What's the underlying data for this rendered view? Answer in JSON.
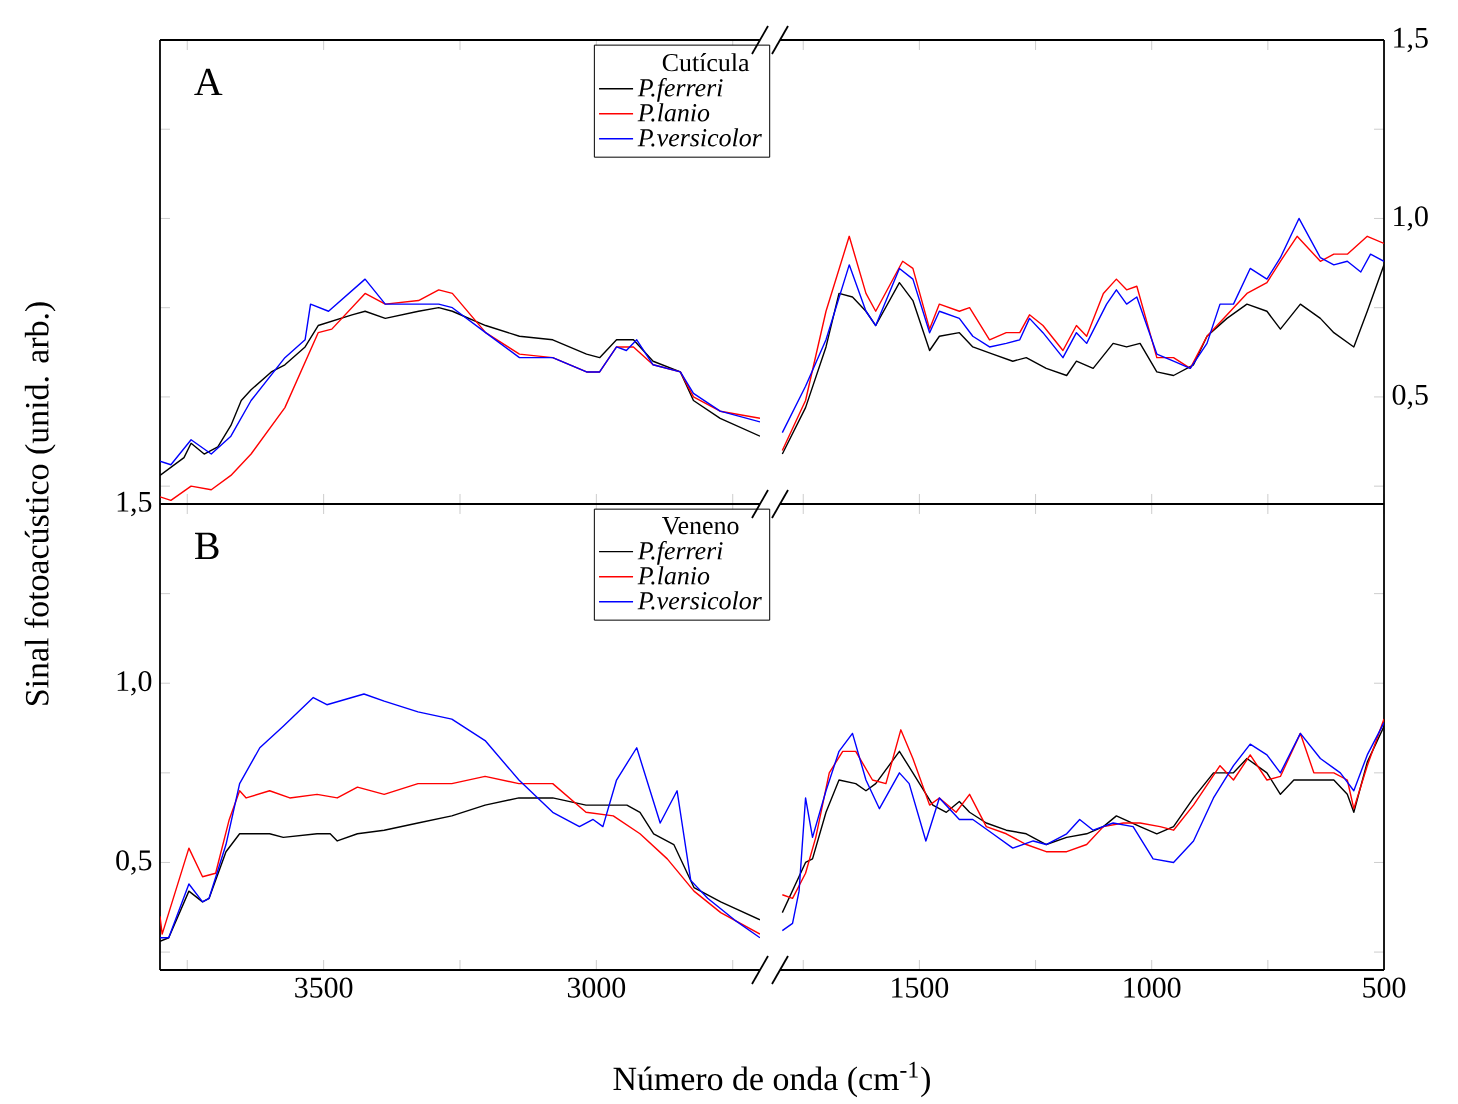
{
  "chart_data": [
    {
      "type": "line",
      "annotations": [
        "A"
      ],
      "legend_title": "Cutícula",
      "legend": "top right",
      "tick_labels": false,
      "xlim": [
        3800,
        2700
      ],
      "ylim": [
        0.2,
        1.5
      ],
      "xticks": [
        3750,
        3500,
        3250,
        3000,
        2750
      ],
      "yticks": [
        0.25,
        0.5,
        0.75,
        1.0,
        1.25,
        1.5
      ],
      "series": [
        {
          "name": "P.ferreri",
          "color": "#000000",
          "x": [
            3800,
            3756,
            3743,
            3719,
            3694,
            3670,
            3651,
            3633,
            3596,
            3571,
            3534,
            3510,
            3448,
            3424,
            3387,
            3326,
            3289,
            3264,
            3203,
            3141,
            3080,
            3018,
            2994,
            2963,
            2932,
            2896,
            2846,
            2822,
            2773,
            2700
          ],
          "values": [
            0.28,
            0.33,
            0.37,
            0.34,
            0.36,
            0.42,
            0.49,
            0.52,
            0.57,
            0.59,
            0.64,
            0.7,
            0.73,
            0.74,
            0.72,
            0.74,
            0.75,
            0.74,
            0.7,
            0.67,
            0.66,
            0.62,
            0.61,
            0.66,
            0.66,
            0.6,
            0.57,
            0.49,
            0.44,
            0.39
          ]
        },
        {
          "name": "P.lanio",
          "color": "#ff0000",
          "x": [
            3800,
            3780,
            3743,
            3706,
            3670,
            3633,
            3571,
            3510,
            3485,
            3424,
            3387,
            3326,
            3289,
            3264,
            3203,
            3141,
            3080,
            3018,
            2994,
            2963,
            2932,
            2896,
            2846,
            2822,
            2773,
            2700
          ],
          "values": [
            0.22,
            0.21,
            0.25,
            0.24,
            0.28,
            0.34,
            0.47,
            0.68,
            0.69,
            0.79,
            0.76,
            0.77,
            0.8,
            0.79,
            0.68,
            0.62,
            0.61,
            0.57,
            0.57,
            0.64,
            0.64,
            0.59,
            0.57,
            0.5,
            0.46,
            0.44
          ]
        },
        {
          "name": "P.versicolor",
          "color": "#0000ff",
          "x": [
            3800,
            3780,
            3743,
            3706,
            3670,
            3633,
            3571,
            3534,
            3524,
            3491,
            3424,
            3387,
            3326,
            3289,
            3264,
            3203,
            3141,
            3080,
            3018,
            2994,
            2963,
            2945,
            2926,
            2896,
            2846,
            2822,
            2773,
            2700
          ],
          "values": [
            0.32,
            0.31,
            0.38,
            0.34,
            0.39,
            0.49,
            0.61,
            0.66,
            0.76,
            0.74,
            0.83,
            0.76,
            0.76,
            0.76,
            0.75,
            0.68,
            0.61,
            0.61,
            0.57,
            0.57,
            0.64,
            0.63,
            0.66,
            0.59,
            0.57,
            0.51,
            0.46,
            0.43
          ]
        }
      ]
    },
    {
      "type": "line",
      "tick_labels": "y",
      "xlim": [
        1800,
        500
      ],
      "ylim": [
        0.2,
        1.5
      ],
      "xticks": [
        {
          "value": 1750,
          "label": null
        },
        1500,
        {
          "value": 1250,
          "label": null
        },
        1000,
        {
          "value": 750,
          "label": null
        },
        500
      ],
      "yticks": [
        {
          "value": 0.25,
          "label": null
        },
        {
          "value": 0.5,
          "label": "0,5"
        },
        {
          "value": 0.75,
          "label": null
        },
        {
          "value": 1.0,
          "label": "1,0"
        },
        {
          "value": 1.25,
          "label": null
        },
        {
          "value": 1.5,
          "label": "1,5"
        }
      ],
      "series": [
        {
          "color": "#000000",
          "x": [
            1795,
            1745,
            1701,
            1673,
            1644,
            1615,
            1594,
            1543,
            1514,
            1478,
            1457,
            1414,
            1385,
            1342,
            1299,
            1270,
            1227,
            1183,
            1162,
            1126,
            1083,
            1054,
            1025,
            989,
            953,
            910,
            881,
            838,
            795,
            752,
            723,
            680,
            637,
            608,
            565,
            536,
            500
          ],
          "values": [
            0.34,
            0.47,
            0.64,
            0.79,
            0.78,
            0.74,
            0.7,
            0.82,
            0.77,
            0.63,
            0.67,
            0.68,
            0.64,
            0.62,
            0.6,
            0.61,
            0.58,
            0.56,
            0.6,
            0.58,
            0.65,
            0.64,
            0.65,
            0.57,
            0.56,
            0.59,
            0.67,
            0.72,
            0.76,
            0.74,
            0.69,
            0.76,
            0.72,
            0.68,
            0.64,
            0.74,
            0.87
          ]
        },
        {
          "color": "#ff0000",
          "x": [
            1795,
            1745,
            1701,
            1651,
            1615,
            1594,
            1536,
            1514,
            1478,
            1457,
            1414,
            1392,
            1349,
            1313,
            1284,
            1263,
            1234,
            1191,
            1162,
            1140,
            1104,
            1076,
            1054,
            1032,
            989,
            953,
            917,
            881,
            838,
            795,
            752,
            723,
            687,
            637,
            608,
            579,
            536,
            500
          ],
          "values": [
            0.35,
            0.49,
            0.74,
            0.95,
            0.79,
            0.74,
            0.88,
            0.86,
            0.69,
            0.76,
            0.74,
            0.75,
            0.66,
            0.68,
            0.68,
            0.73,
            0.7,
            0.63,
            0.7,
            0.67,
            0.79,
            0.83,
            0.8,
            0.81,
            0.61,
            0.61,
            0.58,
            0.67,
            0.73,
            0.79,
            0.82,
            0.88,
            0.95,
            0.88,
            0.9,
            0.9,
            0.95,
            0.93
          ]
        },
        {
          "color": "#0000ff",
          "x": [
            1795,
            1745,
            1701,
            1651,
            1615,
            1594,
            1543,
            1514,
            1478,
            1457,
            1414,
            1385,
            1349,
            1313,
            1284,
            1263,
            1234,
            1191,
            1162,
            1140,
            1097,
            1076,
            1054,
            1032,
            989,
            953,
            917,
            881,
            853,
            824,
            788,
            752,
            723,
            683,
            637,
            608,
            579,
            550,
            529,
            500
          ],
          "values": [
            0.4,
            0.53,
            0.66,
            0.87,
            0.74,
            0.7,
            0.86,
            0.83,
            0.68,
            0.74,
            0.72,
            0.67,
            0.64,
            0.65,
            0.66,
            0.72,
            0.68,
            0.61,
            0.68,
            0.65,
            0.76,
            0.8,
            0.76,
            0.78,
            0.62,
            0.6,
            0.58,
            0.65,
            0.76,
            0.76,
            0.86,
            0.83,
            0.89,
            1.0,
            0.89,
            0.87,
            0.88,
            0.85,
            0.9,
            0.88
          ]
        }
      ]
    },
    {
      "type": "line",
      "annotations": [
        "B"
      ],
      "legend_title": "Veneno",
      "legend": "top right",
      "xlabel": "Número de onda (cm$^{-1}$)",
      "ylabel": "Sinal fotoacústico (unid. arb.)",
      "xlim": [
        3800,
        2700
      ],
      "ylim": [
        0.2,
        1.5
      ],
      "xticks": [
        {
          "value": 3750,
          "label": null
        },
        3500,
        {
          "value": 3250,
          "label": null
        },
        3000,
        {
          "value": 2750,
          "label": null
        }
      ],
      "yticks": [
        {
          "value": 0.25,
          "label": null
        },
        {
          "value": 0.5,
          "label": "0,5"
        },
        {
          "value": 0.75,
          "label": null
        },
        {
          "value": 1.0,
          "label": "1,0"
        },
        {
          "value": 1.25,
          "label": null
        },
        {
          "value": 1.5,
          "label": "1,5"
        }
      ],
      "series": [
        {
          "name": "P.ferreri",
          "color": "#000000",
          "x": [
            3800,
            3784,
            3747,
            3722,
            3710,
            3679,
            3654,
            3636,
            3599,
            3574,
            3512,
            3488,
            3475,
            3438,
            3389,
            3327,
            3265,
            3204,
            3142,
            3080,
            3019,
            2969,
            2944,
            2920,
            2895,
            2858,
            2821,
            2772,
            2700
          ],
          "values": [
            0.28,
            0.29,
            0.42,
            0.39,
            0.4,
            0.53,
            0.58,
            0.58,
            0.58,
            0.57,
            0.58,
            0.58,
            0.56,
            0.58,
            0.59,
            0.61,
            0.63,
            0.66,
            0.68,
            0.68,
            0.66,
            0.66,
            0.66,
            0.64,
            0.58,
            0.55,
            0.43,
            0.39,
            0.34
          ]
        },
        {
          "name": "P.lanio",
          "color": "#ff0000",
          "x": [
            3800,
            3796,
            3747,
            3722,
            3698,
            3673,
            3654,
            3642,
            3599,
            3562,
            3512,
            3475,
            3438,
            3389,
            3327,
            3265,
            3204,
            3142,
            3080,
            3019,
            2969,
            2920,
            2870,
            2821,
            2772,
            2700
          ],
          "values": [
            0.35,
            0.3,
            0.54,
            0.46,
            0.47,
            0.62,
            0.7,
            0.68,
            0.7,
            0.68,
            0.69,
            0.68,
            0.71,
            0.69,
            0.72,
            0.72,
            0.74,
            0.72,
            0.72,
            0.64,
            0.63,
            0.58,
            0.51,
            0.42,
            0.36,
            0.3
          ]
        },
        {
          "name": "P.versicolor",
          "color": "#0000ff",
          "x": [
            3800,
            3784,
            3747,
            3722,
            3710,
            3679,
            3654,
            3617,
            3574,
            3519,
            3494,
            3426,
            3389,
            3327,
            3265,
            3204,
            3142,
            3080,
            3031,
            3006,
            2988,
            2963,
            2926,
            2883,
            2852,
            2827,
            2796,
            2747,
            2700
          ],
          "values": [
            0.29,
            0.29,
            0.44,
            0.39,
            0.4,
            0.55,
            0.72,
            0.82,
            0.88,
            0.96,
            0.94,
            0.97,
            0.95,
            0.92,
            0.9,
            0.84,
            0.73,
            0.64,
            0.6,
            0.62,
            0.6,
            0.73,
            0.82,
            0.61,
            0.7,
            0.45,
            0.4,
            0.34,
            0.29
          ]
        }
      ]
    },
    {
      "type": "line",
      "tick_labels": "x",
      "xlim": [
        1800,
        500
      ],
      "ylim": [
        0.2,
        1.5
      ],
      "xticks": [
        {
          "value": 1750,
          "label": null
        },
        1500,
        {
          "value": 1250,
          "label": null
        },
        1000,
        {
          "value": 750,
          "label": null
        },
        500
      ],
      "yticks": [
        0.25,
        0.5,
        0.75,
        1.0,
        1.25,
        1.5
      ],
      "series": [
        {
          "color": "#000000",
          "x": [
            1795,
            1745,
            1730,
            1701,
            1673,
            1637,
            1615,
            1594,
            1543,
            1514,
            1471,
            1442,
            1414,
            1392,
            1356,
            1313,
            1270,
            1227,
            1183,
            1140,
            1104,
            1076,
            1025,
            989,
            953,
            910,
            867,
            824,
            795,
            752,
            723,
            694,
            651,
            608,
            579,
            565,
            536,
            500
          ],
          "values": [
            0.36,
            0.5,
            0.51,
            0.64,
            0.73,
            0.72,
            0.7,
            0.72,
            0.81,
            0.75,
            0.66,
            0.64,
            0.67,
            0.64,
            0.61,
            0.59,
            0.58,
            0.55,
            0.57,
            0.58,
            0.6,
            0.63,
            0.6,
            0.58,
            0.6,
            0.68,
            0.75,
            0.75,
            0.79,
            0.75,
            0.69,
            0.73,
            0.73,
            0.73,
            0.69,
            0.64,
            0.78,
            0.88
          ]
        },
        {
          "color": "#ff0000",
          "x": [
            1795,
            1773,
            1745,
            1723,
            1694,
            1665,
            1637,
            1601,
            1572,
            1540,
            1514,
            1478,
            1457,
            1421,
            1392,
            1356,
            1313,
            1270,
            1227,
            1183,
            1140,
            1104,
            1061,
            1025,
            982,
            953,
            910,
            853,
            824,
            788,
            752,
            723,
            680,
            651,
            608,
            579,
            565,
            536,
            500
          ],
          "values": [
            0.41,
            0.4,
            0.47,
            0.57,
            0.75,
            0.81,
            0.81,
            0.73,
            0.72,
            0.87,
            0.79,
            0.66,
            0.68,
            0.64,
            0.69,
            0.6,
            0.58,
            0.55,
            0.53,
            0.53,
            0.55,
            0.6,
            0.61,
            0.61,
            0.6,
            0.59,
            0.66,
            0.77,
            0.73,
            0.8,
            0.73,
            0.74,
            0.86,
            0.75,
            0.75,
            0.73,
            0.65,
            0.77,
            0.9
          ]
        },
        {
          "color": "#0000ff",
          "x": [
            1795,
            1773,
            1759,
            1745,
            1730,
            1701,
            1673,
            1644,
            1615,
            1586,
            1543,
            1522,
            1486,
            1457,
            1414,
            1385,
            1342,
            1299,
            1255,
            1227,
            1183,
            1155,
            1126,
            1083,
            1040,
            997,
            953,
            910,
            867,
            824,
            788,
            752,
            723,
            680,
            637,
            594,
            565,
            536,
            500
          ],
          "values": [
            0.31,
            0.33,
            0.42,
            0.68,
            0.57,
            0.7,
            0.81,
            0.86,
            0.73,
            0.65,
            0.75,
            0.72,
            0.56,
            0.68,
            0.62,
            0.62,
            0.58,
            0.54,
            0.56,
            0.55,
            0.58,
            0.62,
            0.59,
            0.61,
            0.6,
            0.51,
            0.5,
            0.56,
            0.68,
            0.77,
            0.83,
            0.8,
            0.75,
            0.86,
            0.79,
            0.75,
            0.7,
            0.8,
            0.89
          ]
        }
      ]
    }
  ]
}
